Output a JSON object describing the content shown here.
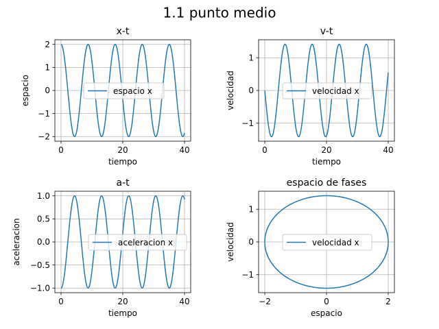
{
  "figure": {
    "suptitle": "1.1 punto medio"
  },
  "chart_data": [
    {
      "type": "line",
      "title": "x-t",
      "xlabel": "tiempo",
      "ylabel": "espacio",
      "xlim": [
        -2,
        42
      ],
      "ylim": [
        -2.2,
        2.2
      ],
      "xticks": [
        0,
        20,
        40
      ],
      "xtick_labels": [
        "0",
        "20",
        "40"
      ],
      "yticks": [
        -2,
        -1,
        0,
        1,
        2
      ],
      "ytick_labels": [
        "−2",
        "−1",
        "0",
        "1",
        "2"
      ],
      "grid": true,
      "legend": "center",
      "series": [
        {
          "name": "espacio x",
          "color": "#1f77b4",
          "function": "2*cos(omega*t)",
          "omega": 0.7168,
          "t_range": [
            0,
            40
          ]
        }
      ]
    },
    {
      "type": "line",
      "title": "v-t",
      "xlabel": "tiempo",
      "ylabel": "velocidad",
      "xlim": [
        -2,
        42
      ],
      "ylim": [
        -1.55,
        1.55
      ],
      "xticks": [
        0,
        20,
        40
      ],
      "xtick_labels": [
        "0",
        "20",
        "40"
      ],
      "yticks": [
        -1,
        0,
        1
      ],
      "ytick_labels": [
        "−1",
        "0",
        "1"
      ],
      "grid": true,
      "legend": "center",
      "series": [
        {
          "name": "velocidad x",
          "color": "#1f77b4",
          "function": "-1.4142*sin(omega*t)",
          "omega": 0.7168,
          "t_range": [
            0,
            40
          ]
        }
      ]
    },
    {
      "type": "line",
      "title": "a-t",
      "xlabel": "tiempo",
      "ylabel": "aceleracion",
      "xlim": [
        -2,
        42
      ],
      "ylim": [
        -1.1,
        1.1
      ],
      "xticks": [
        0,
        20,
        40
      ],
      "xtick_labels": [
        "0",
        "20",
        "40"
      ],
      "yticks": [
        -1.0,
        -0.5,
        0.0,
        0.5,
        1.0
      ],
      "ytick_labels": [
        "−1.0",
        "−0.5",
        "0.0",
        "0.5",
        "1.0"
      ],
      "grid": true,
      "legend": "center-right",
      "series": [
        {
          "name": "aceleracion x",
          "color": "#1f77b4",
          "function": "-cos(omega*t)",
          "omega": 0.7168,
          "t_range": [
            0,
            40
          ]
        }
      ]
    },
    {
      "type": "line",
      "title": "espacio de fases",
      "xlabel": "espacio",
      "ylabel": "velocidad",
      "xlim": [
        -2.2,
        2.2
      ],
      "ylim": [
        -1.55,
        1.55
      ],
      "xticks": [
        -2,
        0,
        2
      ],
      "xtick_labels": [
        "−2",
        "0",
        "2"
      ],
      "yticks": [
        -1,
        0,
        1
      ],
      "ytick_labels": [
        "−1",
        "0",
        "1"
      ],
      "grid": true,
      "legend": "center",
      "series": [
        {
          "name": "velocidad x",
          "color": "#1f77b4",
          "function": "ellipse",
          "x_amplitude": 2,
          "y_amplitude": 1.4142
        }
      ]
    }
  ]
}
